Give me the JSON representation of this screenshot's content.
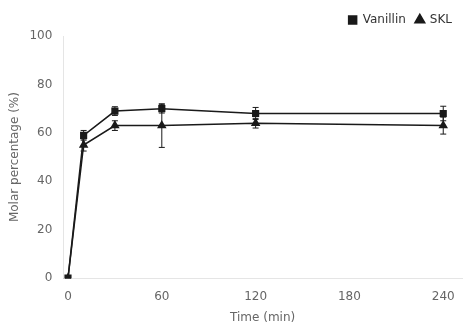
{
  "chart_data": {
    "type": "line",
    "xlabel": "Time (min)",
    "ylabel": "Molar percentage (%)",
    "xlim": [
      -3,
      252
    ],
    "ylim": [
      0,
      100
    ],
    "xticks": [
      0,
      60,
      120,
      180,
      240
    ],
    "yticks": [
      0,
      20,
      40,
      60,
      80,
      100
    ],
    "grid": false,
    "legend": "upper right",
    "series": [
      {
        "name": "Vanillin",
        "color": "#1a1a1a",
        "marker": "square",
        "line_style": "solid",
        "x": [
          0,
          10,
          30,
          60,
          120,
          240
        ],
        "values": [
          0,
          59,
          69,
          70,
          68,
          68
        ],
        "errors": [
          0,
          2.0,
          1.8,
          1.8,
          2.5,
          3.0
        ]
      },
      {
        "name": "SKL",
        "color": "#1a1a1a",
        "marker": "triangle",
        "line_style": "solid",
        "x": [
          0,
          10,
          30,
          60,
          120,
          240
        ],
        "values": [
          0,
          55,
          63,
          63,
          64,
          63
        ],
        "errors": [
          0,
          2.5,
          2.0,
          9.0,
          2.0,
          3.5
        ]
      }
    ]
  }
}
